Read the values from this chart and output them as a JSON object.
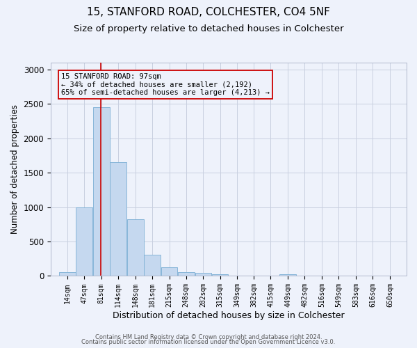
{
  "title1": "15, STANFORD ROAD, COLCHESTER, CO4 5NF",
  "title2": "Size of property relative to detached houses in Colchester",
  "xlabel": "Distribution of detached houses by size in Colchester",
  "ylabel": "Number of detached properties",
  "annotation_line1": "15 STANFORD ROAD: 97sqm",
  "annotation_line2": "← 34% of detached houses are smaller (2,192)",
  "annotation_line3": "65% of semi-detached houses are larger (4,213) →",
  "footer1": "Contains HM Land Registry data © Crown copyright and database right 2024.",
  "footer2": "Contains public sector information licensed under the Open Government Licence v3.0.",
  "property_size": 97,
  "bar_left_edges": [
    14,
    47,
    81,
    114,
    148,
    181,
    215,
    248,
    282,
    315,
    349,
    382,
    415,
    449,
    482,
    516,
    549,
    583,
    616,
    650
  ],
  "bar_values": [
    60,
    1000,
    2450,
    1650,
    820,
    310,
    130,
    55,
    45,
    20,
    0,
    0,
    0,
    30,
    0,
    0,
    0,
    0,
    0,
    0
  ],
  "bar_color": "#c5d8ef",
  "bar_edge_color": "#7bafd4",
  "vline_color": "#cc0000",
  "annotation_box_edgecolor": "#cc0000",
  "bg_color": "#eef2fb",
  "grid_color": "#c8cfe0",
  "title1_fontsize": 11,
  "title2_fontsize": 9.5,
  "ylabel_fontsize": 8.5,
  "xlabel_fontsize": 9,
  "ytick_fontsize": 8.5,
  "xtick_fontsize": 7,
  "annotation_fontsize": 7.5,
  "footer_fontsize": 6,
  "ylim": [
    0,
    3100
  ],
  "yticks": [
    0,
    500,
    1000,
    1500,
    2000,
    2500,
    3000
  ],
  "bin_width": 33
}
